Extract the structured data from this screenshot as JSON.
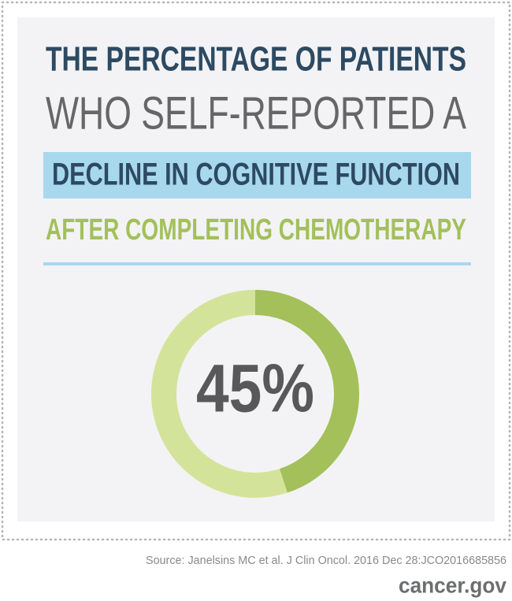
{
  "chart_data": {
    "type": "donut",
    "title_lines": [
      "THE PERCENTAGE OF PATIENTS",
      "WHO SELF-REPORTED A",
      "DECLINE IN COGNITIVE FUNCTION",
      "AFTER COMPLETING CHEMOTHERAPY"
    ],
    "values": [
      45,
      55
    ],
    "value_labels": [
      "45%",
      null
    ],
    "colors": [
      "#a3c05a",
      "#d4e39a"
    ],
    "source": "Source: Janelsins MC et al. J Clin Oncol. 2016 Dec 28:JCO2016685856",
    "site": "cancer.gov"
  }
}
